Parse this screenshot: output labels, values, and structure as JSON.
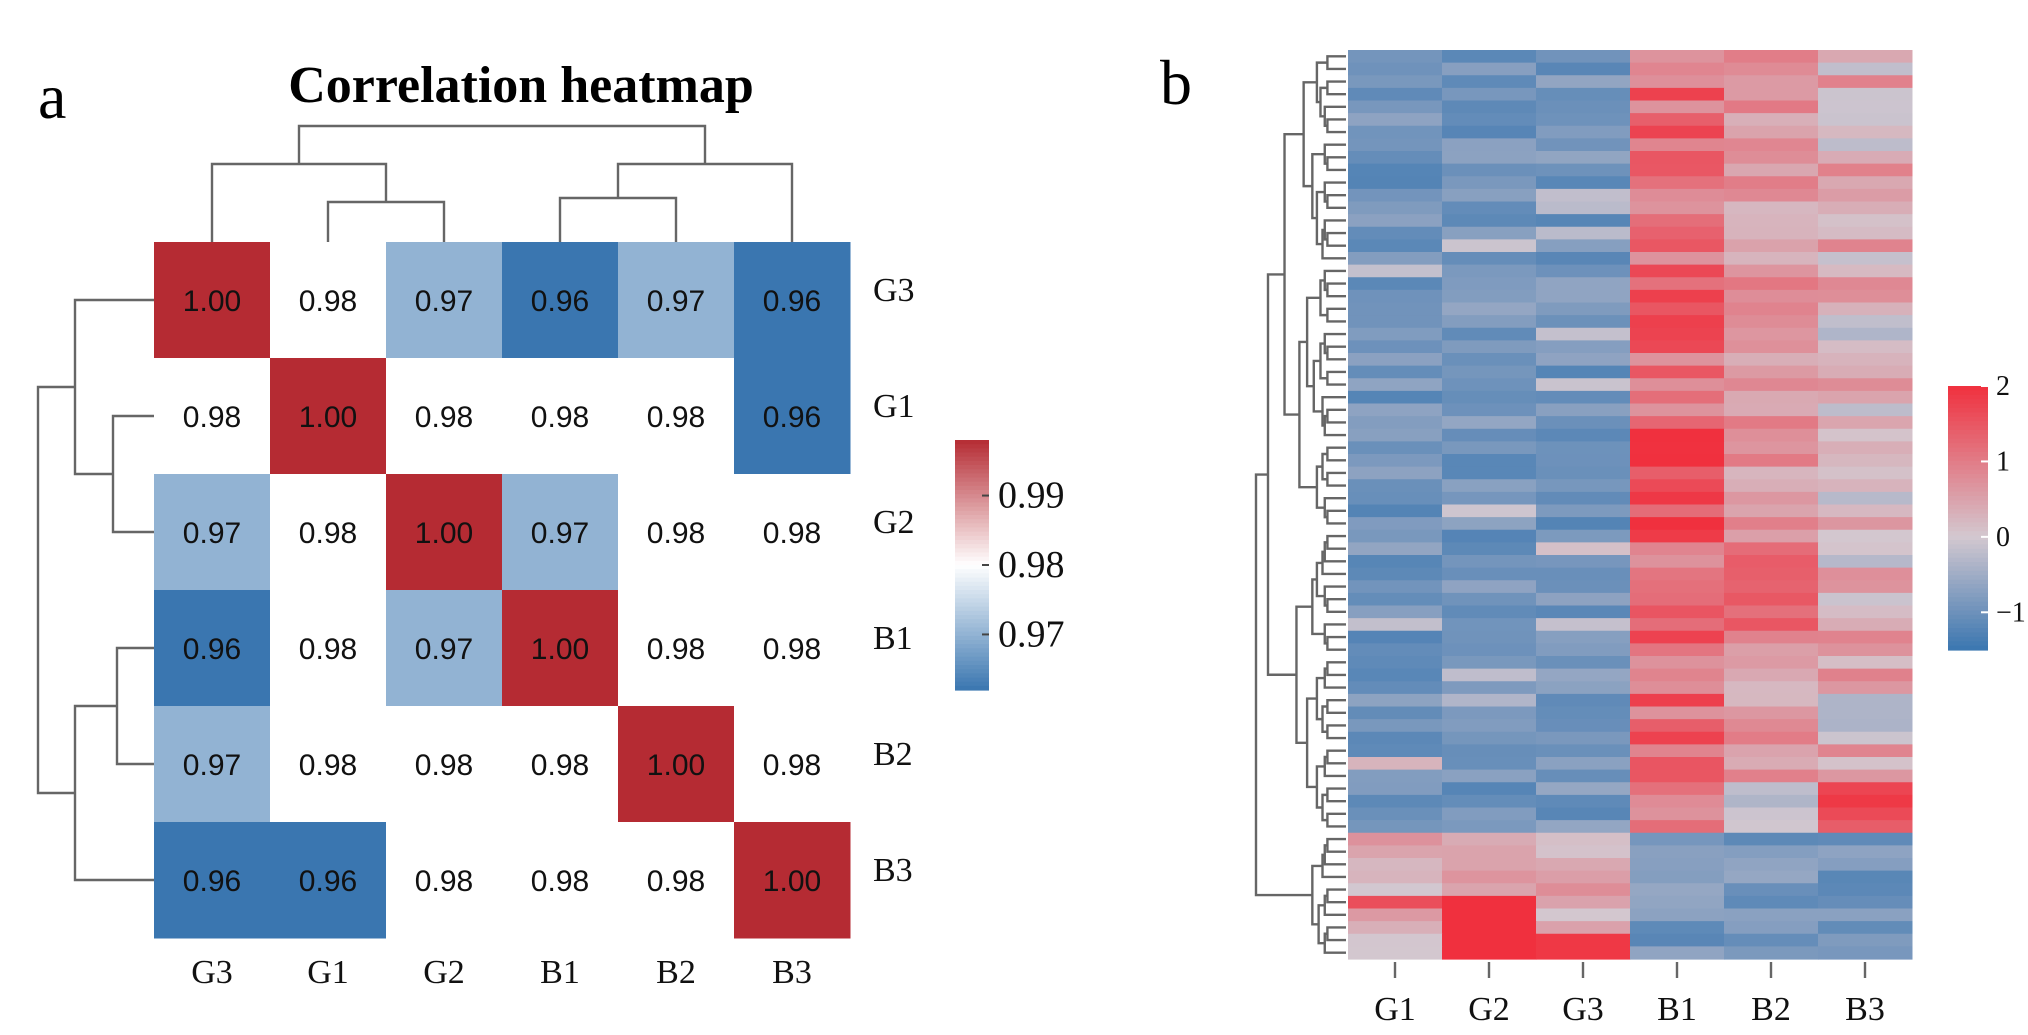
{
  "chart_data": [
    {
      "type": "heatmap",
      "panel_label": "a",
      "title": "Correlation heatmap",
      "row_labels": [
        "G3",
        "G1",
        "G2",
        "B1",
        "B2",
        "B3"
      ],
      "col_labels": [
        "G3",
        "G1",
        "G2",
        "B1",
        "B2",
        "B3"
      ],
      "values": [
        [
          1.0,
          0.98,
          0.97,
          0.96,
          0.97,
          0.96
        ],
        [
          0.98,
          1.0,
          0.98,
          0.98,
          0.98,
          0.96
        ],
        [
          0.97,
          0.98,
          1.0,
          0.97,
          0.98,
          0.98
        ],
        [
          0.96,
          0.98,
          0.97,
          1.0,
          0.98,
          0.98
        ],
        [
          0.97,
          0.98,
          0.98,
          0.98,
          1.0,
          0.98
        ],
        [
          0.96,
          0.96,
          0.98,
          0.98,
          0.98,
          1.0
        ]
      ],
      "cell_labels": [
        [
          "1.00",
          "0.98",
          "0.97",
          "0.96",
          "0.97",
          "0.96"
        ],
        [
          "0.98",
          "1.00",
          "0.98",
          "0.98",
          "0.98",
          "0.96"
        ],
        [
          "0.97",
          "0.98",
          "1.00",
          "0.97",
          "0.98",
          "0.98"
        ],
        [
          "0.96",
          "0.98",
          "0.97",
          "1.00",
          "0.98",
          "0.98"
        ],
        [
          "0.97",
          "0.98",
          "0.98",
          "0.98",
          "1.00",
          "0.98"
        ],
        [
          "0.96",
          "0.96",
          "0.98",
          "0.98",
          "0.98",
          "1.00"
        ]
      ],
      "color_range": [
        0.962,
        0.998
      ],
      "colorbar_ticks": [
        {
          "value": 0.99,
          "label": "0.99"
        },
        {
          "value": 0.98,
          "label": "0.98"
        },
        {
          "value": 0.97,
          "label": "0.97"
        }
      ],
      "colors": {
        "low": "#3a76b0",
        "mid": "#ffffff",
        "high": "#b52b33"
      },
      "dendrogram": "hierarchical clustering on rows and columns: ((G3,(G1,G2)),(B3,(B1,B2)))"
    },
    {
      "type": "heatmap",
      "panel_label": "b",
      "title": "",
      "col_labels": [
        "G1",
        "G2",
        "G3",
        "B1",
        "B2",
        "B3"
      ],
      "n_rows": 72,
      "color_range": [
        -1.5,
        2
      ],
      "colorbar_ticks": [
        {
          "value": 2,
          "label": "2"
        },
        {
          "value": 1,
          "label": "1"
        },
        {
          "value": 0,
          "label": "0"
        },
        {
          "value": -1,
          "label": "−1"
        }
      ],
      "colors": {
        "low": "#3a76b0",
        "mid": "#d3c8d0",
        "high": "#f0303e"
      },
      "row_dendrogram": "hierarchical clustering of genes (rows)",
      "seed": 7
    }
  ]
}
